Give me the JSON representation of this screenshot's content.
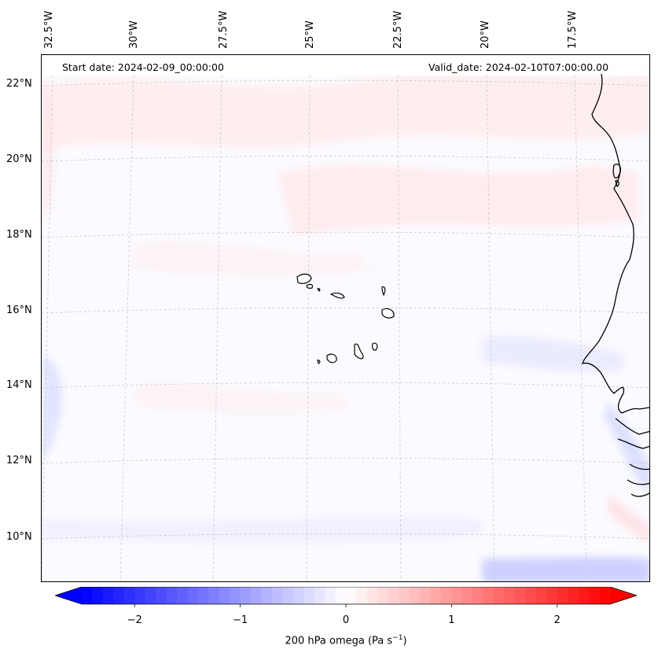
{
  "map": {
    "start_date": "Start date: 2024-02-09_00:00:00",
    "valid_date": "Valid_date: 2024-02-10T07:00:00.00",
    "variable": "200 hPa omega",
    "lon_labels": [
      "32.5°W",
      "30°W",
      "27.5°W",
      "25°W",
      "22.5°W",
      "20°W",
      "17.5°W"
    ],
    "lat_labels": [
      "22°N",
      "20°N",
      "18°N",
      "16°N",
      "14°N",
      "12°N",
      "10°N"
    ],
    "extent": {
      "lon_min": -32.6,
      "lon_max": -15.4,
      "lat_min": 8.9,
      "lat_max": 22.8
    }
  },
  "colorbar": {
    "title_prefix": "200 hPa omega (Pa s",
    "title_exp": "−1",
    "title_suffix": ")",
    "ticks": [
      "−2",
      "−1",
      "0",
      "1",
      "2"
    ],
    "tick_values": [
      -2,
      -1,
      0,
      1,
      2
    ],
    "vmin": -2.5,
    "vmax": 2.5,
    "cmap": "bwr",
    "extend": "both"
  },
  "colors": {
    "negative": "#0000ff",
    "zero": "#ffffff",
    "positive": "#ff0000",
    "coast": "#000000",
    "grid": "#c8c8c8"
  }
}
